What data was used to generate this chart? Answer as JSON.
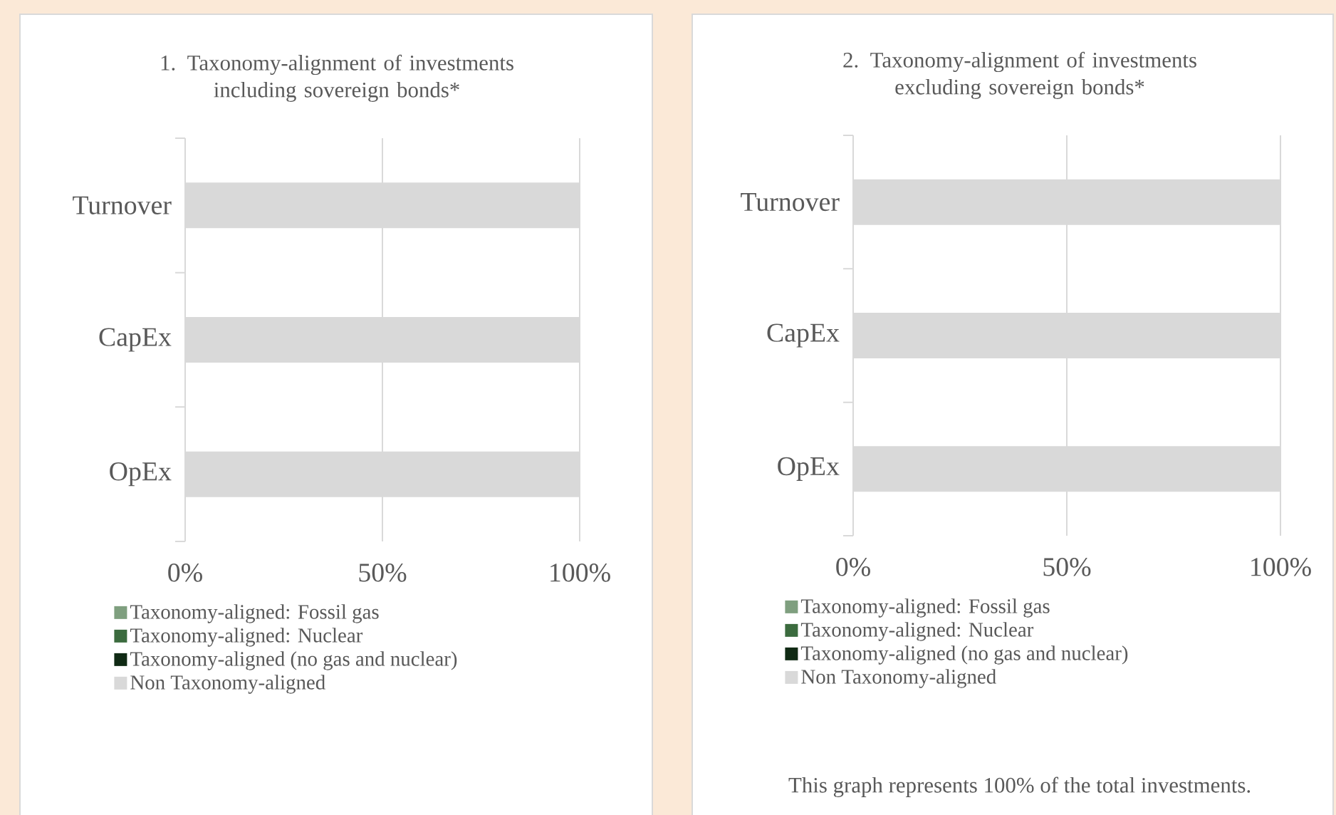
{
  "chart_data": [
    {
      "type": "bar",
      "orientation": "horizontal",
      "stacked": true,
      "title": "1. Taxonomy-alignment of investments including sovereign bonds*",
      "categories": [
        "Turnover",
        "CapEx",
        "OpEx"
      ],
      "xlim": [
        0,
        100
      ],
      "xticks": [
        {
          "value": 0,
          "label": "0%"
        },
        {
          "value": 50,
          "label": "50%"
        },
        {
          "value": 100,
          "label": "100%"
        }
      ],
      "grid": "x",
      "legend": "bottom",
      "series": [
        {
          "name": "Taxonomy-aligned: Fossil gas",
          "color": "#7f9f7f",
          "values": [
            0,
            0,
            0
          ]
        },
        {
          "name": "Taxonomy-aligned: Nuclear",
          "color": "#3b6b3e",
          "values": [
            0,
            0,
            0
          ]
        },
        {
          "name": "Taxonomy-aligned (no gas and nuclear)",
          "color": "#102a14",
          "values": [
            0,
            0,
            0
          ]
        },
        {
          "name": "Non Taxonomy-aligned",
          "color": "#d9d9d9",
          "values": [
            100,
            100,
            100
          ]
        }
      ]
    },
    {
      "type": "bar",
      "orientation": "horizontal",
      "stacked": true,
      "title": "2. Taxonomy-alignment of investments excluding sovereign bonds*",
      "categories": [
        "Turnover",
        "CapEx",
        "OpEx"
      ],
      "xlim": [
        0,
        100
      ],
      "xticks": [
        {
          "value": 0,
          "label": "0%"
        },
        {
          "value": 50,
          "label": "50%"
        },
        {
          "value": 100,
          "label": "100%"
        }
      ],
      "grid": "x",
      "legend": "bottom",
      "annotations": [
        "This graph represents 100% of the total investments."
      ],
      "series": [
        {
          "name": "Taxonomy-aligned: Fossil gas",
          "color": "#7f9f7f",
          "values": [
            0,
            0,
            0
          ]
        },
        {
          "name": "Taxonomy-aligned: Nuclear",
          "color": "#3b6b3e",
          "values": [
            0,
            0,
            0
          ]
        },
        {
          "name": "Taxonomy-aligned (no gas and nuclear)",
          "color": "#102a14",
          "values": [
            0,
            0,
            0
          ]
        },
        {
          "name": "Non Taxonomy-aligned",
          "color": "#d9d9d9",
          "values": [
            100,
            100,
            100
          ]
        }
      ]
    }
  ]
}
